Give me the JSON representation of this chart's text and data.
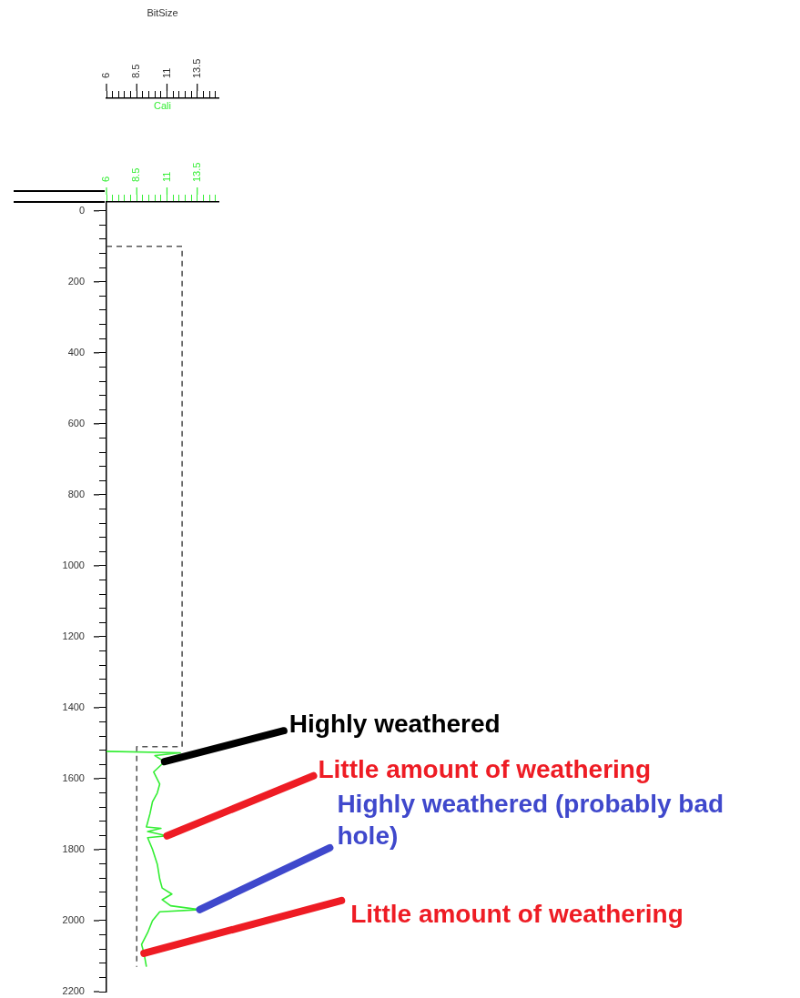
{
  "chart_data": {
    "type": "line",
    "xlabel": "BitSize",
    "x2label": "Cali",
    "xlim": [
      6,
      15.25
    ],
    "x2lim": [
      6,
      15.25
    ],
    "ylim": [
      2200,
      -25
    ],
    "xticks": [
      6,
      {
        "value": 6.5,
        "label": null
      },
      {
        "value": 7,
        "label": null
      },
      {
        "value": 7.5,
        "label": null
      },
      {
        "value": 8,
        "label": null
      },
      8.5,
      {
        "value": 9,
        "label": null
      },
      {
        "value": 9.5,
        "label": null
      },
      {
        "value": 10,
        "label": null
      },
      {
        "value": 10.5,
        "label": null
      },
      11,
      {
        "value": 11.5,
        "label": null
      },
      {
        "value": 12,
        "label": null
      },
      {
        "value": 12.5,
        "label": null
      },
      {
        "value": 13,
        "label": null
      },
      13.5,
      {
        "value": 14,
        "label": null
      },
      {
        "value": 14.5,
        "label": null
      },
      {
        "value": 15,
        "label": null
      }
    ],
    "x2ticks": [
      6,
      {
        "value": 6.5,
        "label": null
      },
      {
        "value": 7,
        "label": null
      },
      {
        "value": 7.5,
        "label": null
      },
      {
        "value": 8,
        "label": null
      },
      8.5,
      {
        "value": 9,
        "label": null
      },
      {
        "value": 9.5,
        "label": null
      },
      {
        "value": 10,
        "label": null
      },
      {
        "value": 10.5,
        "label": null
      },
      11,
      {
        "value": 11.5,
        "label": null
      },
      {
        "value": 12,
        "label": null
      },
      {
        "value": 12.5,
        "label": null
      },
      {
        "value": 13,
        "label": null
      },
      13.5,
      {
        "value": 14,
        "label": null
      },
      {
        "value": 14.5,
        "label": null
      },
      {
        "value": 15,
        "label": null
      }
    ],
    "yticks": [
      0,
      {
        "value": 40,
        "label": null
      },
      {
        "value": 80,
        "label": null
      },
      {
        "value": 120,
        "label": null
      },
      {
        "value": 160,
        "label": null
      },
      200,
      {
        "value": 240,
        "label": null
      },
      {
        "value": 280,
        "label": null
      },
      {
        "value": 320,
        "label": null
      },
      {
        "value": 360,
        "label": null
      },
      400,
      {
        "value": 440,
        "label": null
      },
      {
        "value": 480,
        "label": null
      },
      {
        "value": 520,
        "label": null
      },
      {
        "value": 560,
        "label": null
      },
      600,
      {
        "value": 640,
        "label": null
      },
      {
        "value": 680,
        "label": null
      },
      {
        "value": 720,
        "label": null
      },
      {
        "value": 760,
        "label": null
      },
      800,
      {
        "value": 840,
        "label": null
      },
      {
        "value": 880,
        "label": null
      },
      {
        "value": 920,
        "label": null
      },
      {
        "value": 960,
        "label": null
      },
      1000,
      {
        "value": 1040,
        "label": null
      },
      {
        "value": 1080,
        "label": null
      },
      {
        "value": 1120,
        "label": null
      },
      {
        "value": 1160,
        "label": null
      },
      1200,
      {
        "value": 1240,
        "label": null
      },
      {
        "value": 1280,
        "label": null
      },
      {
        "value": 1320,
        "label": null
      },
      {
        "value": 1360,
        "label": null
      },
      1400,
      {
        "value": 1440,
        "label": null
      },
      {
        "value": 1480,
        "label": null
      },
      {
        "value": 1520,
        "label": null
      },
      {
        "value": 1560,
        "label": null
      },
      1600,
      {
        "value": 1640,
        "label": null
      },
      {
        "value": 1680,
        "label": null
      },
      {
        "value": 1720,
        "label": null
      },
      {
        "value": 1760,
        "label": null
      },
      1800,
      {
        "value": 1840,
        "label": null
      },
      {
        "value": 1880,
        "label": null
      },
      {
        "value": 1920,
        "label": null
      },
      {
        "value": 1960,
        "label": null
      },
      2000,
      {
        "value": 2040,
        "label": null
      },
      {
        "value": 2080,
        "label": null
      },
      {
        "value": 2120,
        "label": null
      },
      {
        "value": 2160,
        "label": null
      },
      2200
    ],
    "grid": false,
    "legend": false,
    "marker": "none",
    "series": [
      {
        "color": "#555555",
        "line_style": "dashed",
        "x": [
          6,
          12.25,
          12.25,
          8.5,
          8.5
        ],
        "values": [
          100,
          100,
          1510,
          1510,
          2130
        ]
      },
      {
        "color": "#33ee33",
        "line_style": "solid",
        "axis": "x2",
        "x": [
          6,
          12.1,
          10.0,
          10.8,
          9.9,
          10.4,
          10.2,
          9.8,
          9.6,
          9.3,
          10.5,
          9.4,
          11.0,
          9.4,
          9.8,
          10.2,
          10.4,
          10.6,
          11.4,
          10.6,
          11.3,
          13.7,
          10.4,
          9.8,
          9.4,
          8.9,
          9.1,
          9.3
        ],
        "values": [
          1523,
          1527,
          1535,
          1552,
          1581,
          1615,
          1640,
          1665,
          1698,
          1736,
          1740,
          1749,
          1761,
          1766,
          1799,
          1841,
          1883,
          1908,
          1925,
          1941,
          1958,
          1969,
          1975,
          2000,
          2034,
          2067,
          2092,
          2130
        ]
      }
    ],
    "annotations": [
      {
        "text": "Highly weathered",
        "x": 10.8,
        "y": 1552
      },
      {
        "text": "Little amount of weathering",
        "x": 11.0,
        "y": 1761
      },
      {
        "text": "Highly weathered (probably bad hole)",
        "x": 13.7,
        "y": 1969
      },
      {
        "text": "Little amount of weathering",
        "x": 9.1,
        "y": 2092
      }
    ]
  }
}
